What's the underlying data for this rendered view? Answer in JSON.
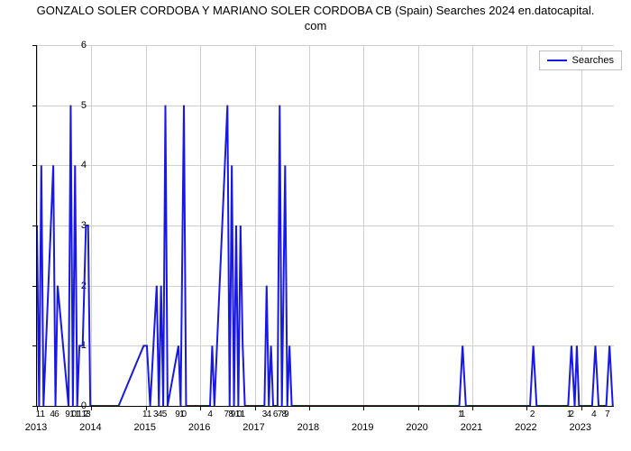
{
  "chart": {
    "type": "line",
    "title_line1": "GONZALO SOLER CORDOBA Y MARIANO SOLER CORDOBA CB (Spain) Searches 2024 en.datocapital.",
    "title_line2": "com",
    "title_fontsize": 13,
    "background_color": "#ffffff",
    "grid_color": "#d0d0d0",
    "axis_color": "#000000",
    "line_color": "#1818e6",
    "line_width": 2,
    "ylim": [
      0,
      6
    ],
    "yticks": [
      0,
      1,
      2,
      3,
      4,
      5,
      6
    ],
    "x_years": [
      2013,
      2014,
      2015,
      2016,
      2017,
      2018,
      2019,
      2020,
      2021,
      2022,
      2023
    ],
    "x_minor_labels": [
      {
        "x": 2013.04,
        "t": "1"
      },
      {
        "x": 2013.12,
        "t": "1"
      },
      {
        "x": 2013.3,
        "t": "4"
      },
      {
        "x": 2013.38,
        "t": "6"
      },
      {
        "x": 2013.58,
        "t": "9"
      },
      {
        "x": 2013.66,
        "t": "1"
      },
      {
        "x": 2013.7,
        "t": "0"
      },
      {
        "x": 2013.76,
        "t": "1"
      },
      {
        "x": 2013.8,
        "t": "1"
      },
      {
        "x": 2013.88,
        "t": "1"
      },
      {
        "x": 2013.92,
        "t": "2"
      },
      {
        "x": 2013.96,
        "t": "3"
      },
      {
        "x": 2015.0,
        "t": "1"
      },
      {
        "x": 2015.08,
        "t": "1"
      },
      {
        "x": 2015.2,
        "t": "3"
      },
      {
        "x": 2015.28,
        "t": "4"
      },
      {
        "x": 2015.36,
        "t": "5"
      },
      {
        "x": 2015.6,
        "t": "9"
      },
      {
        "x": 2015.68,
        "t": "1"
      },
      {
        "x": 2015.72,
        "t": "0"
      },
      {
        "x": 2016.2,
        "t": "4"
      },
      {
        "x": 2016.5,
        "t": "7"
      },
      {
        "x": 2016.58,
        "t": "8"
      },
      {
        "x": 2016.62,
        "t": "9"
      },
      {
        "x": 2016.7,
        "t": "1"
      },
      {
        "x": 2016.74,
        "t": "0"
      },
      {
        "x": 2016.8,
        "t": "1"
      },
      {
        "x": 2017.2,
        "t": "3"
      },
      {
        "x": 2017.28,
        "t": "4"
      },
      {
        "x": 2017.4,
        "t": "6"
      },
      {
        "x": 2017.48,
        "t": "7"
      },
      {
        "x": 2017.56,
        "t": "8"
      },
      {
        "x": 2017.6,
        "t": "9"
      },
      {
        "x": 2020.8,
        "t": "1"
      },
      {
        "x": 2020.84,
        "t": "1"
      },
      {
        "x": 2022.12,
        "t": "2"
      },
      {
        "x": 2022.8,
        "t": "1"
      },
      {
        "x": 2022.84,
        "t": "2"
      },
      {
        "x": 2023.25,
        "t": "4"
      },
      {
        "x": 2023.5,
        "t": "7"
      }
    ],
    "legend_label": "Searches",
    "data": [
      {
        "x": 2013.0,
        "y": 3
      },
      {
        "x": 2013.04,
        "y": 0
      },
      {
        "x": 2013.08,
        "y": 4
      },
      {
        "x": 2013.12,
        "y": 0
      },
      {
        "x": 2013.3,
        "y": 4
      },
      {
        "x": 2013.34,
        "y": 0
      },
      {
        "x": 2013.38,
        "y": 2
      },
      {
        "x": 2013.58,
        "y": 0
      },
      {
        "x": 2013.62,
        "y": 5
      },
      {
        "x": 2013.66,
        "y": 0
      },
      {
        "x": 2013.7,
        "y": 4
      },
      {
        "x": 2013.74,
        "y": 0
      },
      {
        "x": 2013.78,
        "y": 1
      },
      {
        "x": 2013.84,
        "y": 1
      },
      {
        "x": 2013.9,
        "y": 3
      },
      {
        "x": 2013.94,
        "y": 3
      },
      {
        "x": 2013.98,
        "y": 0
      },
      {
        "x": 2014.5,
        "y": 0
      },
      {
        "x": 2014.96,
        "y": 1
      },
      {
        "x": 2015.02,
        "y": 1
      },
      {
        "x": 2015.08,
        "y": 0
      },
      {
        "x": 2015.2,
        "y": 2
      },
      {
        "x": 2015.24,
        "y": 0
      },
      {
        "x": 2015.28,
        "y": 2
      },
      {
        "x": 2015.32,
        "y": 0
      },
      {
        "x": 2015.36,
        "y": 5
      },
      {
        "x": 2015.4,
        "y": 0
      },
      {
        "x": 2015.6,
        "y": 1
      },
      {
        "x": 2015.64,
        "y": 0
      },
      {
        "x": 2015.7,
        "y": 5
      },
      {
        "x": 2015.74,
        "y": 0
      },
      {
        "x": 2016.18,
        "y": 0
      },
      {
        "x": 2016.22,
        "y": 1
      },
      {
        "x": 2016.26,
        "y": 0
      },
      {
        "x": 2016.5,
        "y": 5
      },
      {
        "x": 2016.54,
        "y": 0
      },
      {
        "x": 2016.58,
        "y": 4
      },
      {
        "x": 2016.62,
        "y": 0
      },
      {
        "x": 2016.66,
        "y": 3
      },
      {
        "x": 2016.7,
        "y": 0
      },
      {
        "x": 2016.74,
        "y": 3
      },
      {
        "x": 2016.78,
        "y": 1
      },
      {
        "x": 2016.82,
        "y": 0
      },
      {
        "x": 2017.18,
        "y": 0
      },
      {
        "x": 2017.22,
        "y": 2
      },
      {
        "x": 2017.26,
        "y": 0
      },
      {
        "x": 2017.3,
        "y": 1
      },
      {
        "x": 2017.34,
        "y": 0
      },
      {
        "x": 2017.42,
        "y": 0
      },
      {
        "x": 2017.46,
        "y": 5
      },
      {
        "x": 2017.5,
        "y": 0
      },
      {
        "x": 2017.56,
        "y": 4
      },
      {
        "x": 2017.6,
        "y": 0
      },
      {
        "x": 2017.64,
        "y": 1
      },
      {
        "x": 2017.68,
        "y": 0
      },
      {
        "x": 2018.5,
        "y": 0
      },
      {
        "x": 2020.76,
        "y": 0
      },
      {
        "x": 2020.82,
        "y": 1
      },
      {
        "x": 2020.88,
        "y": 0
      },
      {
        "x": 2022.06,
        "y": 0
      },
      {
        "x": 2022.12,
        "y": 1
      },
      {
        "x": 2022.18,
        "y": 0
      },
      {
        "x": 2022.76,
        "y": 0
      },
      {
        "x": 2022.82,
        "y": 1
      },
      {
        "x": 2022.88,
        "y": 0
      },
      {
        "x": 2022.92,
        "y": 1
      },
      {
        "x": 2022.96,
        "y": 0
      },
      {
        "x": 2023.2,
        "y": 0
      },
      {
        "x": 2023.26,
        "y": 1
      },
      {
        "x": 2023.32,
        "y": 0
      },
      {
        "x": 2023.46,
        "y": 0
      },
      {
        "x": 2023.52,
        "y": 1
      },
      {
        "x": 2023.58,
        "y": 0
      }
    ]
  }
}
